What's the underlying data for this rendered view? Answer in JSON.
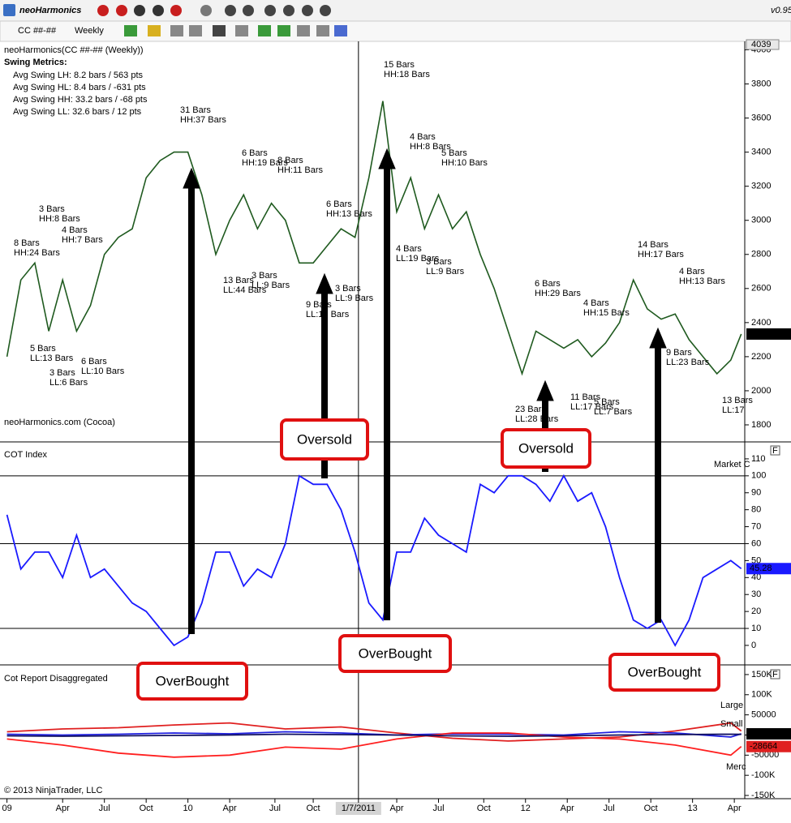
{
  "window": {
    "app_name": "neoHarmonics",
    "version": "v0.95"
  },
  "toolbar": {
    "instrument": "CC ##-##",
    "period": "Weekly"
  },
  "x_axis": {
    "xlim": [
      -2,
      212
    ],
    "ticks": [
      {
        "value": 0,
        "label": "09"
      },
      {
        "value": 16,
        "label": "Apr"
      },
      {
        "value": 28,
        "label": "Jul"
      },
      {
        "value": 40,
        "label": "Oct"
      },
      {
        "value": 52,
        "label": "10"
      },
      {
        "value": 64,
        "label": "Apr"
      },
      {
        "value": 77,
        "label": "Jul"
      },
      {
        "value": 88,
        "label": "Oct"
      },
      {
        "value": 101,
        "label": "1/7/2011"
      },
      {
        "value": 112,
        "label": "Apr"
      },
      {
        "value": 124,
        "label": "Jul"
      },
      {
        "value": 137,
        "label": "Oct"
      },
      {
        "value": 149,
        "label": "12"
      },
      {
        "value": 161,
        "label": "Apr"
      },
      {
        "value": 173,
        "label": "Jul"
      },
      {
        "value": 185,
        "label": "Oct"
      },
      {
        "value": 197,
        "label": "13"
      },
      {
        "value": 209,
        "label": "Apr"
      }
    ]
  },
  "price_panel": {
    "title": "neoHarmonics(CC ##-## (Weekly))",
    "metrics_title": "Swing Metrics:",
    "metrics": [
      "Avg Swing LH: 8.2 bars / 563 pts",
      "Avg Swing HL: 8.4 bars / -631 pts",
      "Avg Swing HH: 33.2 bars / -68 pts",
      "Avg Swing LL: 32.6 bars / 12 pts"
    ],
    "watermark": "neoHarmonics.com (Cocoa)",
    "ylim": [
      1700,
      4050
    ],
    "yticks": [
      1800,
      2000,
      2200,
      2400,
      2600,
      2800,
      3000,
      3200,
      3400,
      3600,
      3800,
      4000
    ],
    "axis_top_value": 4039,
    "color": "#1f5a1f",
    "x": [
      0,
      4,
      8,
      12,
      16,
      20,
      24,
      28,
      32,
      36,
      40,
      44,
      48,
      52,
      56,
      60,
      64,
      68,
      72,
      76,
      80,
      84,
      88,
      92,
      96,
      100,
      104,
      108,
      112,
      116,
      120,
      124,
      128,
      132,
      136,
      140,
      144,
      148,
      152,
      156,
      160,
      164,
      168,
      172,
      176,
      180,
      184,
      188,
      192,
      196,
      200,
      204,
      208,
      211
    ],
    "close": [
      2200,
      2650,
      2750,
      2350,
      2650,
      2350,
      2500,
      2800,
      2900,
      2950,
      3250,
      3350,
      3400,
      3400,
      3150,
      2800,
      3000,
      3150,
      2950,
      3100,
      3000,
      2750,
      2750,
      2850,
      2950,
      2900,
      3250,
      3700,
      3050,
      3250,
      2950,
      3150,
      2950,
      3050,
      2800,
      2600,
      2350,
      2100,
      2350,
      2300,
      2250,
      2300,
      2200,
      2280,
      2400,
      2650,
      2480,
      2420,
      2450,
      2300,
      2200,
      2100,
      2180,
      2333
    ],
    "last_value": 2333,
    "swings": [
      [
        "8 Bars",
        "HH:24 Bars"
      ],
      [
        "3 Bars",
        "HH:8 Bars"
      ],
      [
        "4 Bars",
        "HH:7 Bars"
      ],
      [
        "5 Bars",
        "LL:13 Bars"
      ],
      [
        "3 Bars",
        "LL:6 Bars"
      ],
      [
        "6 Bars",
        "LL:10 Bars"
      ],
      [
        "31 Bars",
        "HH:37 Bars"
      ],
      [
        "6 Bars",
        "HH:19 Bars"
      ],
      [
        "8 Bars",
        "HH:11 Bars"
      ],
      [
        "13 Bars",
        "LL:44 Bars"
      ],
      [
        "3 Bars",
        "LL:9 Bars"
      ],
      [
        "6 Bars",
        "HH:13 Bars"
      ],
      [
        "9 Bars",
        "LL:17 Bars"
      ],
      [
        "3 Bars",
        "LL:9 Bars"
      ],
      [
        "15 Bars",
        "HH:18 Bars"
      ],
      [
        "4 Bars",
        "HH:8 Bars"
      ],
      [
        "5 Bars",
        "HH:10 Bars"
      ],
      [
        "4 Bars",
        "LL:19 Bars"
      ],
      [
        "3 Bars",
        "LL:9 Bars"
      ],
      [
        "6 Bars",
        "HH:29 Bars"
      ],
      [
        "4 Bars",
        "HH:15 Bars"
      ],
      [
        "23 Bars",
        "LL:28 Bars"
      ],
      [
        "11 Bars",
        "LL:17 Bars"
      ],
      [
        "5 Bars",
        "LL:7 Bars"
      ],
      [
        "14 Bars",
        "HH:17 Bars"
      ],
      [
        "4 Bars",
        "HH:13 Bars"
      ],
      [
        "9 Bars",
        "LL:23 Bars"
      ],
      [
        "13 Bars",
        "LL:17"
      ]
    ]
  },
  "cot_panel": {
    "title": "COT Index",
    "side_label": "Market C",
    "ylim": [
      -11.5,
      120
    ],
    "yticks": [
      0,
      10,
      20,
      30,
      40,
      50,
      60,
      70,
      80,
      90,
      100,
      110
    ],
    "reference_lines": [
      10,
      60,
      100
    ],
    "color": "#1a1aff",
    "x": [
      0,
      4,
      8,
      12,
      16,
      20,
      24,
      28,
      32,
      36,
      40,
      44,
      48,
      52,
      56,
      60,
      64,
      68,
      72,
      76,
      80,
      84,
      88,
      92,
      96,
      100,
      104,
      108,
      112,
      116,
      120,
      124,
      128,
      132,
      136,
      140,
      144,
      148,
      152,
      156,
      160,
      164,
      168,
      172,
      176,
      180,
      184,
      188,
      192,
      196,
      200,
      204,
      208,
      211
    ],
    "values": [
      77,
      45,
      55,
      55,
      40,
      65,
      40,
      45,
      35,
      25,
      20,
      10,
      0,
      5,
      25,
      55,
      55,
      35,
      45,
      40,
      60,
      100,
      95,
      95,
      80,
      55,
      25,
      15,
      55,
      55,
      75,
      65,
      60,
      55,
      95,
      90,
      100,
      100,
      95,
      85,
      100,
      85,
      90,
      70,
      40,
      15,
      10,
      15,
      0,
      15,
      40,
      45,
      50,
      45.28
    ],
    "last_value": 45.28
  },
  "report_panel": {
    "title": "Cot Report Disaggregated",
    "ylim": [
      -158000,
      174000
    ],
    "yticks": [
      {
        "value": 150000,
        "label": "150K"
      },
      {
        "value": 100000,
        "label": "100K"
      },
      50000,
      0,
      -50000,
      {
        "value": -100000,
        "label": "-100K"
      },
      {
        "value": -150000,
        "label": "-150K"
      }
    ],
    "x": [
      0,
      16,
      32,
      48,
      64,
      80,
      96,
      112,
      128,
      144,
      160,
      176,
      192,
      208,
      211
    ],
    "series": [
      {
        "name": "Large",
        "color": "#e02020",
        "values": [
          8000,
          15000,
          18000,
          25000,
          30000,
          15000,
          20000,
          5000,
          -8000,
          -15000,
          -10000,
          -5000,
          10000,
          30000,
          10000
        ]
      },
      {
        "name": "Small",
        "color": "#2020e0",
        "values": [
          2000,
          0,
          2000,
          5000,
          3000,
          8000,
          5000,
          0,
          3000,
          2000,
          0,
          8000,
          5000,
          -5000,
          2900
        ]
      },
      {
        "name": "Merc",
        "color": "#ff2020",
        "values": [
          -10000,
          -25000,
          -45000,
          -55000,
          -50000,
          -30000,
          -35000,
          -10000,
          5000,
          5000,
          -5000,
          -10000,
          -25000,
          -50000,
          -28664
        ]
      },
      {
        "color": "#101060",
        "values": [
          -2000,
          -3000,
          -2000,
          -1000,
          0,
          2000,
          1000,
          0,
          -2000,
          -3000,
          -2000,
          0,
          1000,
          2000,
          1500
        ]
      }
    ]
  },
  "panel_button": "F",
  "callouts": [
    "OverBought",
    "Oversold",
    "OverBought",
    "Oversold",
    "OverBought"
  ],
  "copyright": "© 2013 NinjaTrader, LLC"
}
